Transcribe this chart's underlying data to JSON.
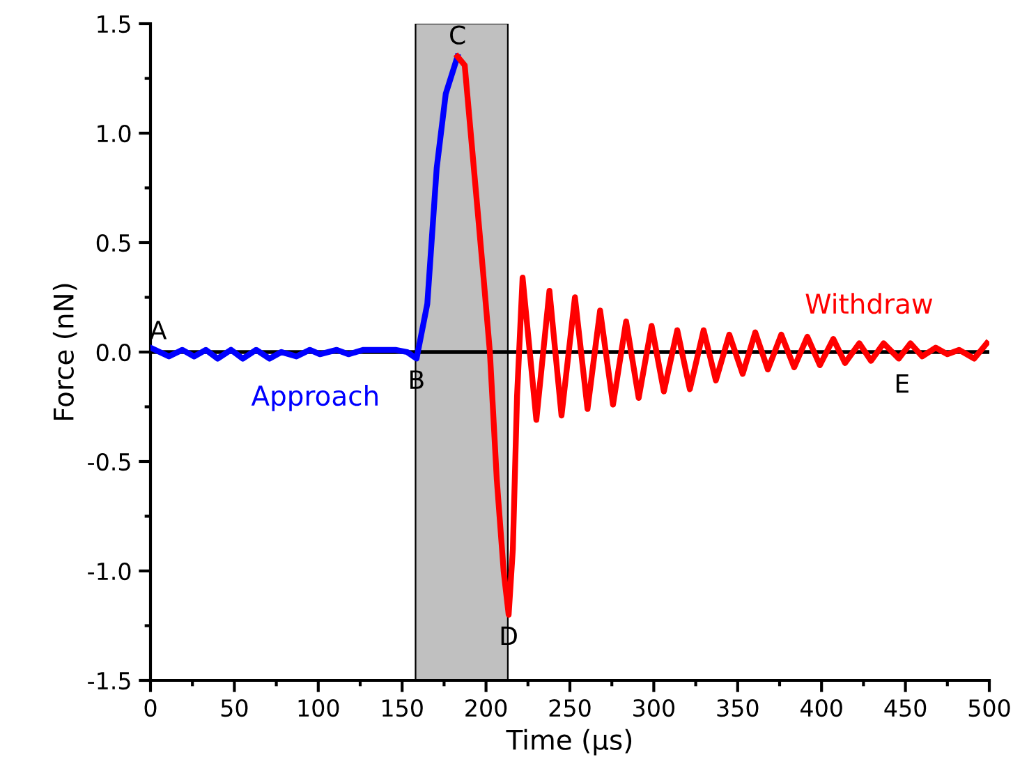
{
  "chart_data": {
    "type": "line",
    "xlabel": "Time (µs)",
    "ylabel": "Force (nN)",
    "xlim": [
      0,
      500
    ],
    "ylim": [
      -1.5,
      1.5
    ],
    "xticks": [
      0,
      50,
      100,
      150,
      200,
      250,
      300,
      350,
      400,
      450,
      500
    ],
    "yticks": [
      {
        "value": -1.5,
        "label": "-1.5"
      },
      {
        "value": -1.0,
        "label": "-1.0"
      },
      {
        "value": -0.5,
        "label": "-0.5"
      },
      {
        "value": 0,
        "label": "0.0"
      },
      {
        "value": 0.5,
        "label": "0.5"
      },
      {
        "value": 1.0,
        "label": "1.0"
      },
      {
        "value": 1.5,
        "label": "1.5"
      }
    ],
    "grid": false,
    "legend": false,
    "marker": "none",
    "line_style": "solid",
    "series": [
      {
        "name": "Approach",
        "color": "#0000ff",
        "x": [
          0,
          11,
          19,
          26,
          33,
          40,
          48,
          55,
          63,
          71,
          78,
          87,
          95,
          101,
          111,
          118,
          127,
          135,
          146,
          153,
          158.6,
          165,
          170.6,
          176,
          183
        ],
        "values": [
          0.02,
          -0.02,
          0.01,
          -0.02,
          0.01,
          -0.03,
          0.01,
          -0.03,
          0.01,
          -0.03,
          0.0,
          -0.02,
          0.01,
          -0.01,
          0.01,
          -0.01,
          0.01,
          0.01,
          0.01,
          0.0,
          -0.03,
          0.22,
          0.84,
          1.18,
          1.35
        ]
      },
      {
        "name": "Withdraw",
        "color": "#ff0000",
        "x": [
          183,
          187.3,
          198.2,
          202.3,
          206.4,
          210.5,
          213.5,
          216,
          218.5,
          221.8,
          230,
          237.8,
          245,
          253,
          260.5,
          268,
          275.7,
          283.5,
          291,
          298.7,
          306,
          314,
          321.5,
          329.7,
          337,
          345,
          353,
          360.5,
          368,
          376,
          383.7,
          391.5,
          399,
          407,
          414,
          422.5,
          429.5,
          437,
          446,
          453,
          460,
          468,
          475,
          482,
          491,
          498.5
        ],
        "values": [
          1.35,
          1.31,
          0.37,
          0.0,
          -0.58,
          -1.0,
          -1.2,
          -0.9,
          -0.2,
          0.34,
          -0.31,
          0.28,
          -0.29,
          0.25,
          -0.26,
          0.19,
          -0.24,
          0.14,
          -0.21,
          0.12,
          -0.18,
          0.1,
          -0.17,
          0.1,
          -0.13,
          0.08,
          -0.1,
          0.09,
          -0.08,
          0.08,
          -0.07,
          0.07,
          -0.06,
          0.06,
          -0.05,
          0.04,
          -0.04,
          0.04,
          -0.03,
          0.04,
          -0.02,
          0.02,
          -0.01,
          0.01,
          -0.03,
          0.04
        ]
      }
    ],
    "ref_lines": [
      {
        "axis": "y",
        "value": 0,
        "color": "#000000",
        "line_style": "solid"
      }
    ],
    "bands": [
      {
        "axis": "x",
        "from": 158,
        "to": 213,
        "color": "#c0c0c0"
      }
    ],
    "annotations": [
      {
        "text": "A",
        "x": 0,
        "y": 0.02
      },
      {
        "text": "B",
        "x": 158.6,
        "y": -0.03
      },
      {
        "text": "C",
        "x": 183,
        "y": 1.35
      },
      {
        "text": "D",
        "x": 213.5,
        "y": -1.2
      },
      {
        "text": "E",
        "x": 448,
        "y": -0.03
      }
    ]
  }
}
